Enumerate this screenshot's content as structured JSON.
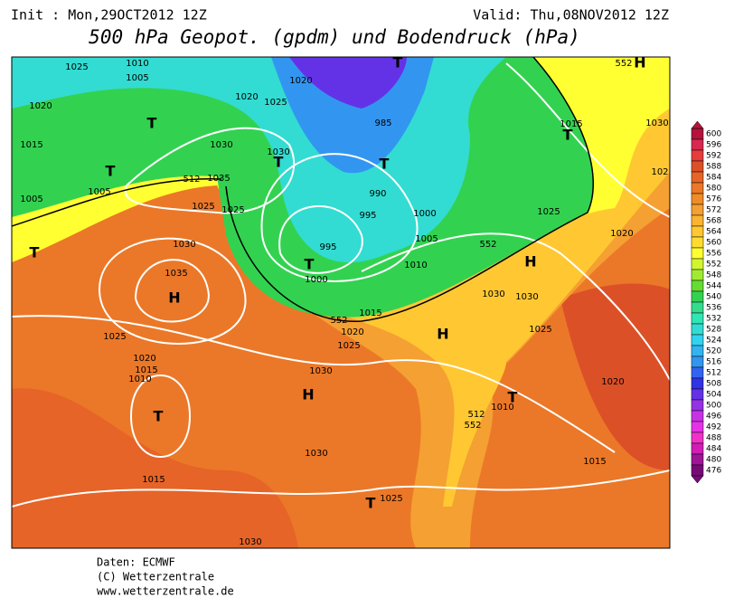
{
  "header": {
    "init": "Init : Mon,29OCT2012 12Z",
    "valid": "Valid: Thu,08NOV2012 12Z",
    "title": "500 hPa Geopot. (gpdm) und Bodendruck (hPa)"
  },
  "footer": {
    "source": "Daten: ECMWF",
    "copyright": "(C) Wetterzentrale",
    "url": "www.wetterzentrale.de"
  },
  "colorbar": {
    "levels": [
      600,
      596,
      592,
      588,
      584,
      580,
      576,
      572,
      568,
      564,
      560,
      556,
      552,
      548,
      544,
      540,
      536,
      532,
      528,
      524,
      520,
      516,
      512,
      508,
      504,
      500,
      496,
      492,
      488,
      484,
      480,
      476
    ],
    "colors": [
      "#b4143c",
      "#d72850",
      "#e63c3c",
      "#dc5028",
      "#e66428",
      "#eb7828",
      "#f08c28",
      "#f5a032",
      "#fab432",
      "#ffc832",
      "#ffdc32",
      "#ffff32",
      "#d2f532",
      "#a0eb32",
      "#64dc32",
      "#32d250",
      "#32dc8c",
      "#32e6b4",
      "#32dcd2",
      "#32d2f0",
      "#32b4f0",
      "#3296f0",
      "#3264f0",
      "#3232e6",
      "#6432e6",
      "#9632e6",
      "#c832e6",
      "#e632e6",
      "#f032c8",
      "#d21eb4",
      "#a01496",
      "#780a78"
    ]
  },
  "map_labels": [
    "1025",
    "1010",
    "1005",
    "1020",
    "1015",
    "T",
    "1005",
    "1005",
    "T",
    "1020",
    "1025",
    "T",
    "1030",
    "1030",
    "T",
    "1035",
    "1025",
    "1025",
    "1020",
    "T",
    "985",
    "T",
    "990",
    "995",
    "1000",
    "995",
    "T",
    "1000",
    "1005",
    "1010",
    "1030",
    "1035",
    "H",
    "1025",
    "1020",
    "1015",
    "1010",
    "T",
    "1015",
    "1030",
    "H",
    "1030",
    "1015",
    "1020",
    "1025",
    "H",
    "1030",
    "1030",
    "H",
    "1025",
    "1020",
    "1015",
    "T",
    "1030",
    "1025",
    "1020",
    "102",
    "H",
    "1010",
    "T",
    "1025",
    "T",
    "1015",
    "552",
    "552",
    "552",
    "512",
    "512",
    "552",
    "1030"
  ]
}
